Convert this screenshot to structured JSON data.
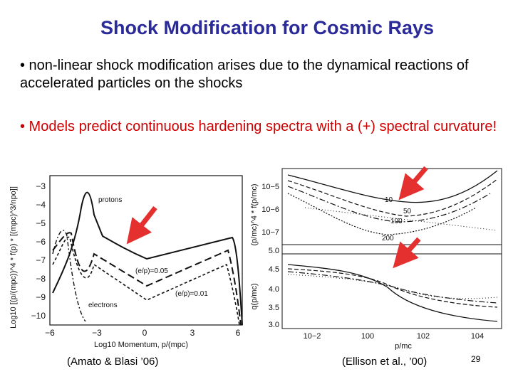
{
  "slide": {
    "title": "Shock Modification for Cosmic Rays",
    "bullets": [
      "• non-linear shock modification arises due to the dynamical reactions of accelerated particles on the shocks",
      "• Models predict continuous hardening spectra with a (+) spectral curvature!"
    ],
    "page_number": "29",
    "accent_color": "#cc0000",
    "title_color": "#2a2a9a"
  },
  "left_figure": {
    "caption": "(Amato & Blasi ’06)",
    "ylabel": "Log10 [(p/(mpc))^4 * f(p) * [(mpc)^3/npo]]",
    "xlabel": "Log10 Momentum, p/(mpc)",
    "x_ticks": [
      "−6",
      "−3",
      "0",
      "3",
      "6"
    ],
    "y_ticks": [
      "−3",
      "−4",
      "−5",
      "−6",
      "−7",
      "−8",
      "−9",
      "−10"
    ],
    "labels": [
      "protons",
      "(e/p)=0.05",
      "(e/p)=0.01",
      "electrons"
    ]
  },
  "right_figure": {
    "caption": "(Ellison et al., ’00)",
    "top_ylabel": "(p/mc)^4 * f(p/mc)",
    "bottom_ylabel": "q(p/mc)",
    "xlabel": "p/mc",
    "top_y_ticks": [
      "10−5",
      "10−6",
      "10−7"
    ],
    "bottom_y_ticks": [
      "5.0",
      "4.5",
      "4.0",
      "3.5",
      "3.0"
    ],
    "x_ticks": [
      "10−2",
      "100",
      "102",
      "104"
    ],
    "curve_labels": [
      "10",
      "50",
      "100",
      "200"
    ]
  }
}
